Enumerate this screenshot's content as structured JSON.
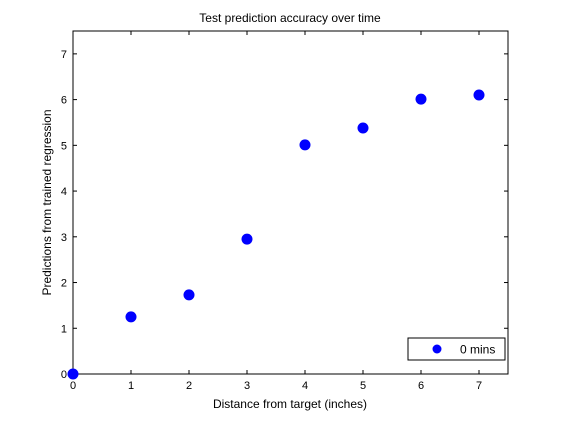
{
  "chart_data": {
    "type": "scatter",
    "title": "Test prediction accuracy over time",
    "xlabel": "Distance from target (inches)",
    "ylabel": "Predictions from trained regression",
    "xlim": [
      0,
      7.5
    ],
    "ylim": [
      0,
      7.5
    ],
    "xticks": [
      0,
      1,
      2,
      3,
      4,
      5,
      6,
      7
    ],
    "yticks": [
      0,
      1,
      2,
      3,
      4,
      5,
      6,
      7
    ],
    "grid": false,
    "legend_position": "bottom-right",
    "series": [
      {
        "name": "0 mins",
        "color": "#0000ff",
        "marker": "circle",
        "x": [
          0,
          1,
          2,
          3,
          4,
          5,
          6,
          7
        ],
        "y": [
          0,
          1.25,
          1.73,
          2.95,
          5.01,
          5.38,
          6.01,
          6.1
        ]
      }
    ]
  }
}
